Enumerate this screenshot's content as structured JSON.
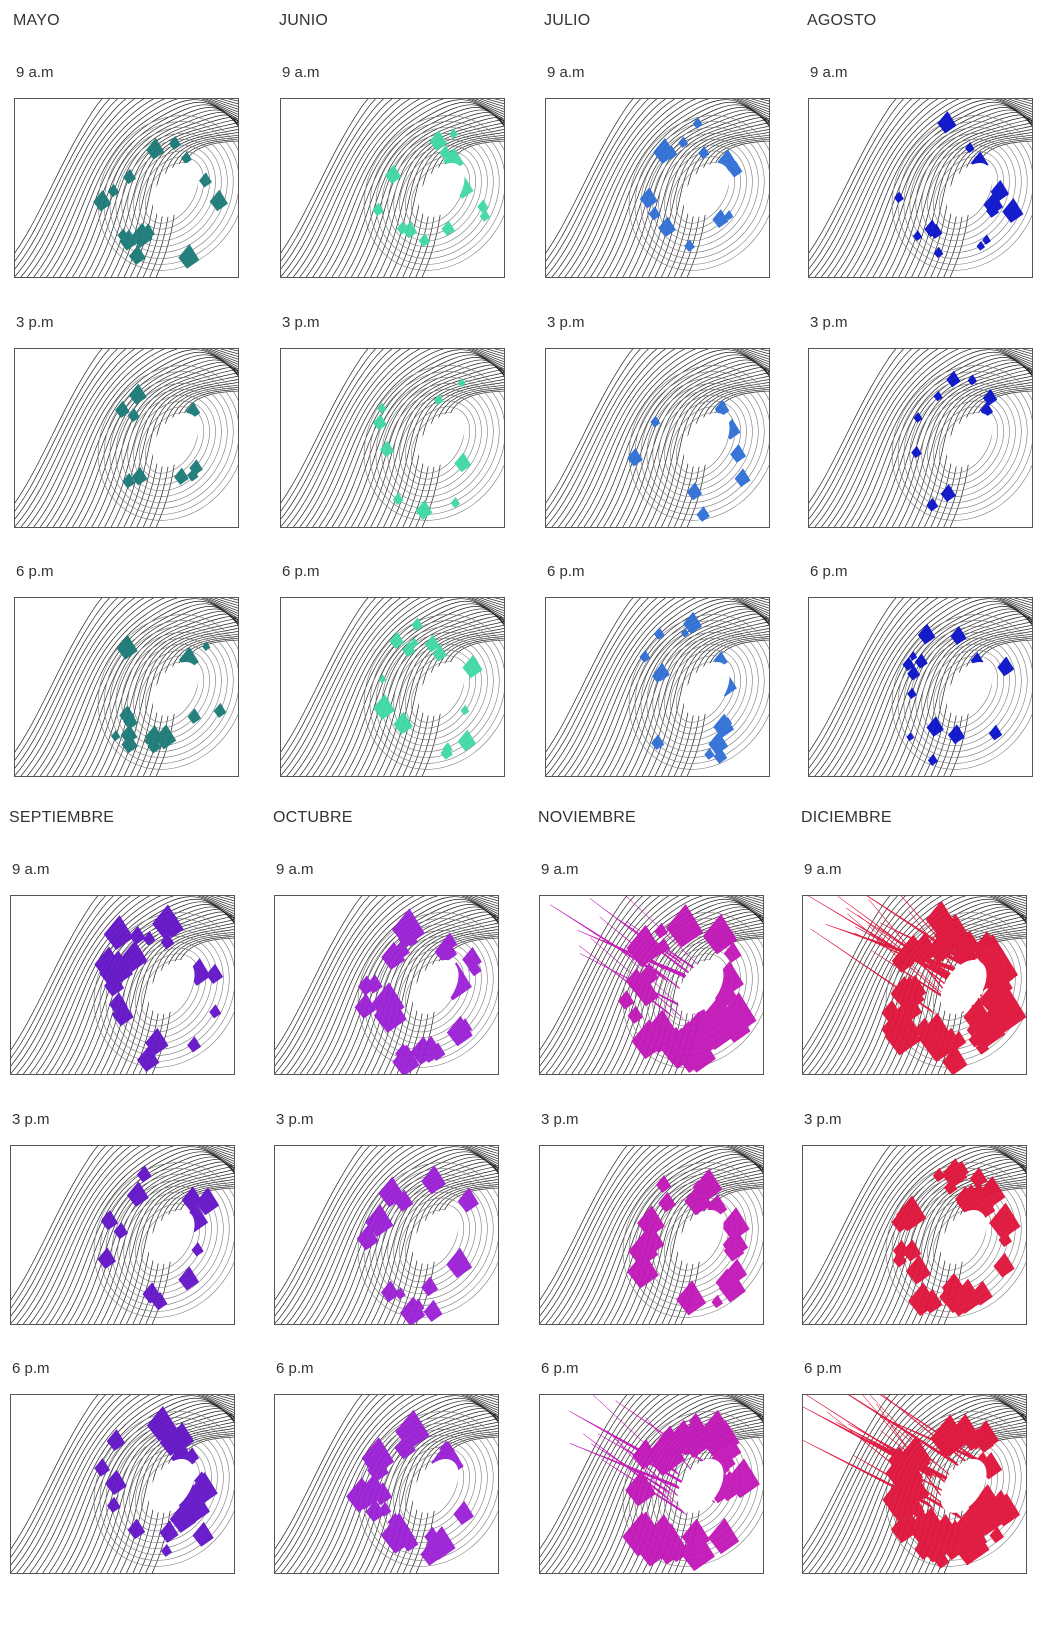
{
  "months": [
    {
      "name": "MAYO",
      "color": "#1a7a78",
      "intensity": 1
    },
    {
      "name": "JUNIO",
      "color": "#3fd9a6",
      "intensity": 1
    },
    {
      "name": "JULIO",
      "color": "#2f6fd6",
      "intensity": 1
    },
    {
      "name": "AGOSTO",
      "color": "#0a12c9",
      "intensity": 1
    },
    {
      "name": "SEPTIEMBRE",
      "color": "#6414c8",
      "intensity": 1.4
    },
    {
      "name": "OCTUBRE",
      "color": "#9b1fd6",
      "intensity": 1.6
    },
    {
      "name": "NOVIEMBRE",
      "color": "#c216b8",
      "intensity": 2.3
    },
    {
      "name": "DICIEMBRE",
      "color": "#e0143c",
      "intensity": 3.4
    }
  ],
  "times": [
    "9 a.m",
    "3 p.m",
    "6 p.m"
  ]
}
